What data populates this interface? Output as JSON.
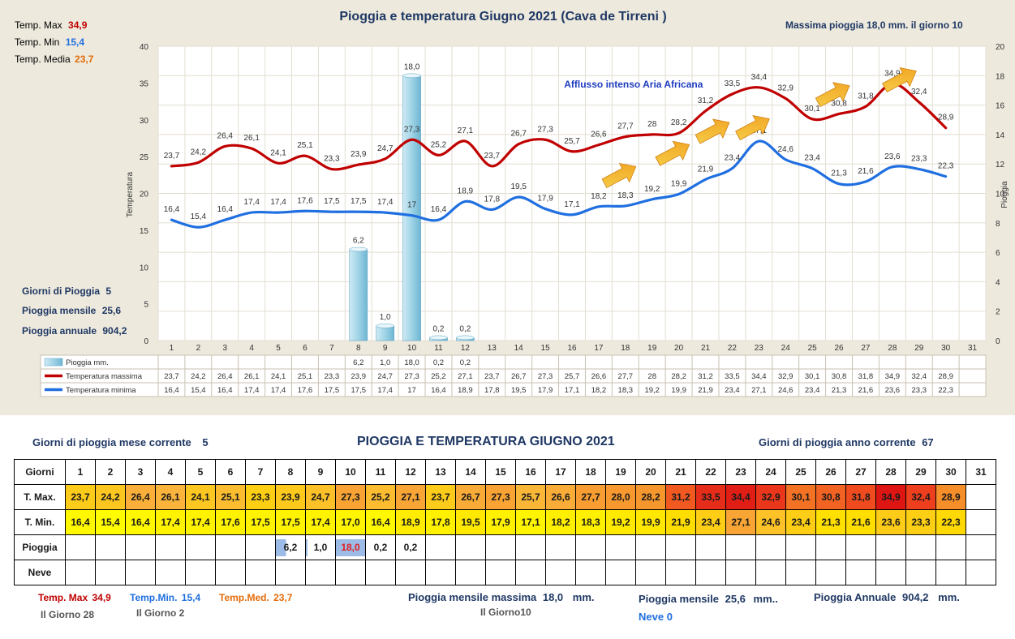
{
  "chart_data": {
    "type": "line",
    "title": "Pioggia e temperatura Giugno 2021 (Cava de Tirreni )",
    "ylabel": "Temperatura",
    "y2label": "Pioggia",
    "ylim": [
      0,
      40
    ],
    "y2lim": [
      0,
      20
    ],
    "y_ticks": [
      "0",
      "5",
      "10",
      "15",
      "20",
      "25",
      "30",
      "35",
      "40"
    ],
    "y2_ticks": [
      "0",
      "2",
      "4",
      "6",
      "8",
      "10",
      "12",
      "14",
      "16",
      "18",
      "20"
    ],
    "categories": [
      "1",
      "2",
      "3",
      "4",
      "5",
      "6",
      "7",
      "8",
      "9",
      "10",
      "11",
      "12",
      "13",
      "14",
      "15",
      "16",
      "17",
      "18",
      "19",
      "20",
      "21",
      "22",
      "23",
      "24",
      "25",
      "26",
      "27",
      "28",
      "29",
      "30",
      "31"
    ],
    "grid": true,
    "legend": "table-below",
    "series": [
      {
        "name": "Pioggia mm.",
        "kind": "bar",
        "axis": "right",
        "color": "#9fd3e6",
        "values": [
          null,
          null,
          null,
          null,
          null,
          null,
          null,
          6.2,
          1.0,
          18.0,
          0.2,
          0.2,
          null,
          null,
          null,
          null,
          null,
          null,
          null,
          null,
          null,
          null,
          null,
          null,
          null,
          null,
          null,
          null,
          null,
          null,
          null
        ],
        "labels": [
          "",
          "",
          "",
          "",
          "",
          "",
          "",
          "6,2",
          "1,0",
          "18,0",
          "0,2",
          "0,2",
          "",
          "",
          "",
          "",
          "",
          "",
          "",
          "",
          "",
          "",
          "",
          "",
          "",
          "",
          "",
          "",
          "",
          "",
          ""
        ]
      },
      {
        "name": "Temperatura massima",
        "kind": "line",
        "axis": "left",
        "color": "#c00000",
        "values": [
          23.7,
          24.2,
          26.4,
          26.1,
          24.1,
          25.1,
          23.3,
          23.9,
          24.7,
          27.3,
          25.2,
          27.1,
          23.7,
          26.7,
          27.3,
          25.7,
          26.6,
          27.7,
          28,
          28.2,
          31.2,
          33.5,
          34.4,
          32.9,
          30.1,
          30.8,
          31.8,
          34.9,
          32.4,
          28.9,
          null
        ],
        "labels": [
          "23,7",
          "24,2",
          "26,4",
          "26,1",
          "24,1",
          "25,1",
          "23,3",
          "23,9",
          "24,7",
          "27,3",
          "25,2",
          "27,1",
          "23,7",
          "26,7",
          "27,3",
          "25,7",
          "26,6",
          "27,7",
          "28",
          "28,2",
          "31,2",
          "33,5",
          "34,4",
          "32,9",
          "30,1",
          "30,8",
          "31,8",
          "34,9",
          "32,4",
          "28,9",
          ""
        ]
      },
      {
        "name": "Temperatura minima",
        "kind": "line",
        "axis": "left",
        "color": "#1f6fe0",
        "values": [
          16.4,
          15.4,
          16.4,
          17.4,
          17.4,
          17.6,
          17.5,
          17.5,
          17.4,
          17,
          16.4,
          18.9,
          17.8,
          19.5,
          17.9,
          17.1,
          18.2,
          18.3,
          19.2,
          19.9,
          21.9,
          23.4,
          27.1,
          24.6,
          23.4,
          21.3,
          21.6,
          23.6,
          23.3,
          22.3,
          null
        ],
        "labels": [
          "16,4",
          "15,4",
          "16,4",
          "17,4",
          "17,4",
          "17,6",
          "17,5",
          "17,5",
          "17,4",
          "17",
          "16,4",
          "18,9",
          "17,8",
          "19,5",
          "17,9",
          "17,1",
          "18,2",
          "18,3",
          "19,2",
          "19,9",
          "21,9",
          "23,4",
          "27,1",
          "24,6",
          "23,4",
          "21,3",
          "21,6",
          "23,6",
          "23,3",
          "22,3",
          ""
        ]
      }
    ],
    "annotation": "Afflusso intenso Aria Africana",
    "arrow_days": [
      17.5,
      19.5,
      21,
      22.5,
      25.5,
      28
    ],
    "arrow_color": "#f0a020"
  },
  "left_panel": {
    "tmax_label": "Temp. Max",
    "tmax_value": "34,9",
    "tmin_label": "Temp. Min",
    "tmin_value": "15,4",
    "tmed_label": "Temp. Media",
    "tmed_value": "23,7",
    "rain_days_label": "Giorni di Pioggia",
    "rain_days_value": "5",
    "rain_month_label": "Pioggia mensile",
    "rain_month_value": "25,6",
    "rain_year_label": "Pioggia annuale",
    "rain_year_value": "904,2"
  },
  "top_right": "Massima pioggia  18,0 mm. il giorno   10",
  "colors": {
    "panel": "#ede9dd",
    "tmax": "#c00000",
    "tmin": "#1f6fe0",
    "tmed": "#e46c0a",
    "navy": "#1f3864",
    "bar": "#9fd3e6"
  },
  "bottom": {
    "title": "PIOGGIA E TEMPERATURA GIUGNO 2021",
    "rain_days_month_label": "Giorni di pioggia mese corrente",
    "rain_days_month_value": "5",
    "rain_days_year_label": "Giorni di pioggia anno corrente",
    "rain_days_year_value": "67",
    "table": {
      "row_headers": [
        "Giorni",
        "T. Max.",
        "T. Min.",
        "Pioggia",
        "Neve"
      ],
      "days": [
        "1",
        "2",
        "3",
        "4",
        "5",
        "6",
        "7",
        "8",
        "9",
        "10",
        "11",
        "12",
        "13",
        "14",
        "15",
        "16",
        "17",
        "18",
        "19",
        "20",
        "21",
        "22",
        "23",
        "24",
        "25",
        "26",
        "27",
        "28",
        "29",
        "30",
        "31"
      ],
      "tmax": [
        "23,7",
        "24,2",
        "26,4",
        "26,1",
        "24,1",
        "25,1",
        "23,3",
        "23,9",
        "24,7",
        "27,3",
        "25,2",
        "27,1",
        "23,7",
        "26,7",
        "27,3",
        "25,7",
        "26,6",
        "27,7",
        "28,0",
        "28,2",
        "31,2",
        "33,5",
        "34,4",
        "32,9",
        "30,1",
        "30,8",
        "31,8",
        "34,9",
        "32,4",
        "28,9",
        ""
      ],
      "tmin": [
        "16,4",
        "15,4",
        "16,4",
        "17,4",
        "17,4",
        "17,6",
        "17,5",
        "17,5",
        "17,4",
        "17,0",
        "16,4",
        "18,9",
        "17,8",
        "19,5",
        "17,9",
        "17,1",
        "18,2",
        "18,3",
        "19,2",
        "19,9",
        "21,9",
        "23,4",
        "27,1",
        "24,6",
        "23,4",
        "21,3",
        "21,6",
        "23,6",
        "23,3",
        "22,3",
        ""
      ],
      "rain": [
        "",
        "",
        "",
        "",
        "",
        "",
        "",
        "6,2",
        "1,0",
        "18,0",
        "0,2",
        "0,2",
        "",
        "",
        "",
        "",
        "",
        "",
        "",
        "",
        "",
        "",
        "",
        "",
        "",
        "",
        "",
        "",
        "",
        "",
        ""
      ],
      "snow": [
        "",
        "",
        "",
        "",
        "",
        "",
        "",
        "",
        "",
        "",
        "",
        "",
        "",
        "",
        "",
        "",
        "",
        "",
        "",
        "",
        "",
        "",
        "",
        "",
        "",
        "",
        "",
        "",
        "",
        "",
        ""
      ]
    },
    "footer": {
      "tmax_label": "Temp. Max",
      "tmax_value": "34,9",
      "tmin_label": "Temp.Min.",
      "tmin_value": "15,4",
      "tmed_label": "Temp.Med.",
      "tmed_value": "23,7",
      "tmax_day": "Il Giorno  28",
      "tmin_day": "Il Giorno  2",
      "rain_max_label": "Pioggia mensile massima",
      "rain_max_value": "18,0",
      "rain_max_unit": "mm.",
      "rain_max_day": "Il Giorno10",
      "rain_month_label": "Pioggia mensile",
      "rain_month_value": "25,6",
      "rain_month_unit": "mm..",
      "rain_year_label": "Pioggia Annuale",
      "rain_year_value": "904,2",
      "rain_year_unit": "mm.",
      "snow": "Neve 0"
    }
  }
}
